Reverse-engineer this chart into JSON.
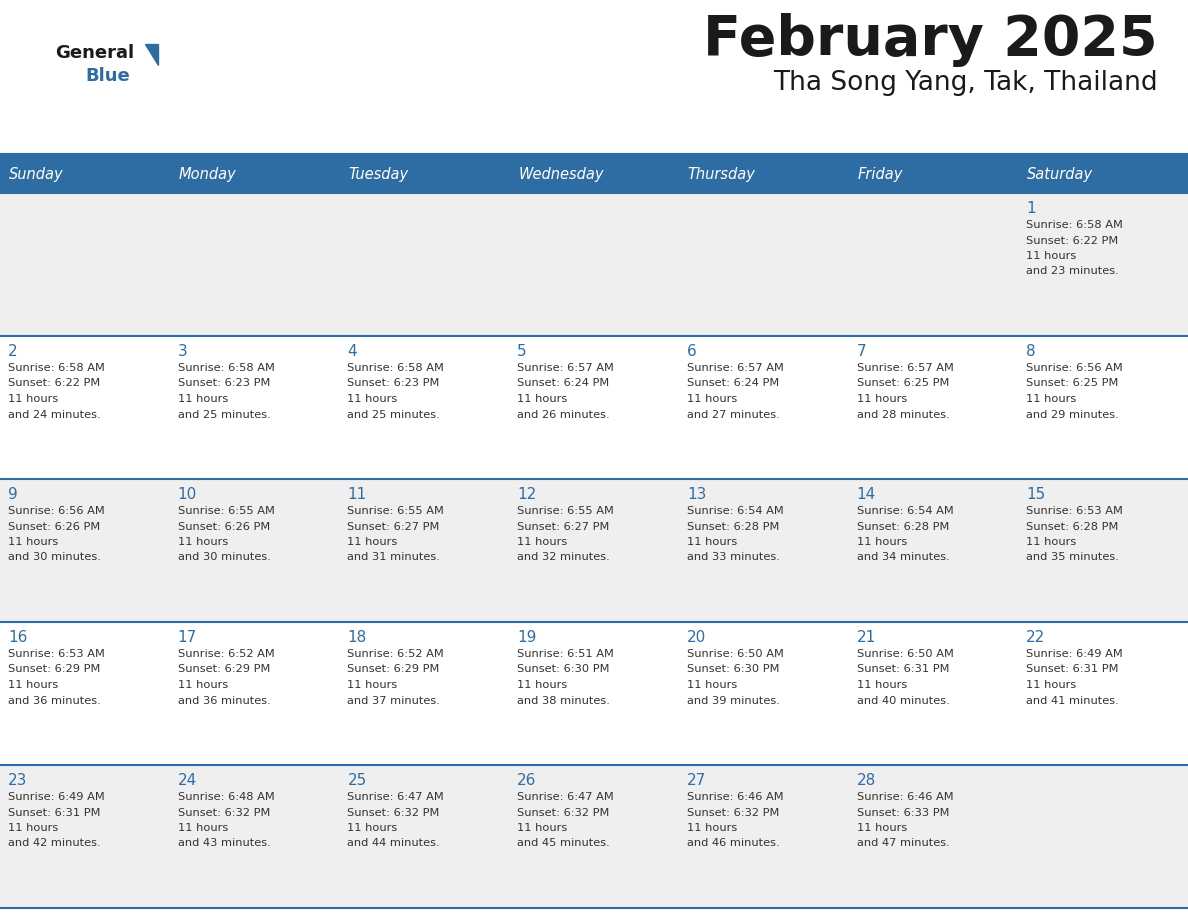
{
  "title": "February 2025",
  "subtitle": "Tha Song Yang, Tak, Thailand",
  "header_bg": "#2E6DA4",
  "header_text_color": "#FFFFFF",
  "cell_bg_odd": "#EFEFEF",
  "cell_bg_even": "#FFFFFF",
  "day_headers": [
    "Sunday",
    "Monday",
    "Tuesday",
    "Wednesday",
    "Thursday",
    "Friday",
    "Saturday"
  ],
  "title_color": "#1a1a1a",
  "subtitle_color": "#1a1a1a",
  "date_color": "#2E6DA4",
  "info_color": "#333333",
  "line_color": "#2E6DA4",
  "logo_general_color": "#1a1a1a",
  "logo_blue_color": "#2E6DA4",
  "logo_triangle_color": "#2E6DA4",
  "weeks": [
    [
      {
        "day": null
      },
      {
        "day": null
      },
      {
        "day": null
      },
      {
        "day": null
      },
      {
        "day": null
      },
      {
        "day": null
      },
      {
        "day": 1,
        "sunrise": "6:58 AM",
        "sunset": "6:22 PM",
        "daylight": "11 hours and 23 minutes."
      }
    ],
    [
      {
        "day": 2,
        "sunrise": "6:58 AM",
        "sunset": "6:22 PM",
        "daylight": "11 hours and 24 minutes."
      },
      {
        "day": 3,
        "sunrise": "6:58 AM",
        "sunset": "6:23 PM",
        "daylight": "11 hours and 25 minutes."
      },
      {
        "day": 4,
        "sunrise": "6:58 AM",
        "sunset": "6:23 PM",
        "daylight": "11 hours and 25 minutes."
      },
      {
        "day": 5,
        "sunrise": "6:57 AM",
        "sunset": "6:24 PM",
        "daylight": "11 hours and 26 minutes."
      },
      {
        "day": 6,
        "sunrise": "6:57 AM",
        "sunset": "6:24 PM",
        "daylight": "11 hours and 27 minutes."
      },
      {
        "day": 7,
        "sunrise": "6:57 AM",
        "sunset": "6:25 PM",
        "daylight": "11 hours and 28 minutes."
      },
      {
        "day": 8,
        "sunrise": "6:56 AM",
        "sunset": "6:25 PM",
        "daylight": "11 hours and 29 minutes."
      }
    ],
    [
      {
        "day": 9,
        "sunrise": "6:56 AM",
        "sunset": "6:26 PM",
        "daylight": "11 hours and 30 minutes."
      },
      {
        "day": 10,
        "sunrise": "6:55 AM",
        "sunset": "6:26 PM",
        "daylight": "11 hours and 30 minutes."
      },
      {
        "day": 11,
        "sunrise": "6:55 AM",
        "sunset": "6:27 PM",
        "daylight": "11 hours and 31 minutes."
      },
      {
        "day": 12,
        "sunrise": "6:55 AM",
        "sunset": "6:27 PM",
        "daylight": "11 hours and 32 minutes."
      },
      {
        "day": 13,
        "sunrise": "6:54 AM",
        "sunset": "6:28 PM",
        "daylight": "11 hours and 33 minutes."
      },
      {
        "day": 14,
        "sunrise": "6:54 AM",
        "sunset": "6:28 PM",
        "daylight": "11 hours and 34 minutes."
      },
      {
        "day": 15,
        "sunrise": "6:53 AM",
        "sunset": "6:28 PM",
        "daylight": "11 hours and 35 minutes."
      }
    ],
    [
      {
        "day": 16,
        "sunrise": "6:53 AM",
        "sunset": "6:29 PM",
        "daylight": "11 hours and 36 minutes."
      },
      {
        "day": 17,
        "sunrise": "6:52 AM",
        "sunset": "6:29 PM",
        "daylight": "11 hours and 36 minutes."
      },
      {
        "day": 18,
        "sunrise": "6:52 AM",
        "sunset": "6:29 PM",
        "daylight": "11 hours and 37 minutes."
      },
      {
        "day": 19,
        "sunrise": "6:51 AM",
        "sunset": "6:30 PM",
        "daylight": "11 hours and 38 minutes."
      },
      {
        "day": 20,
        "sunrise": "6:50 AM",
        "sunset": "6:30 PM",
        "daylight": "11 hours and 39 minutes."
      },
      {
        "day": 21,
        "sunrise": "6:50 AM",
        "sunset": "6:31 PM",
        "daylight": "11 hours and 40 minutes."
      },
      {
        "day": 22,
        "sunrise": "6:49 AM",
        "sunset": "6:31 PM",
        "daylight": "11 hours and 41 minutes."
      }
    ],
    [
      {
        "day": 23,
        "sunrise": "6:49 AM",
        "sunset": "6:31 PM",
        "daylight": "11 hours and 42 minutes."
      },
      {
        "day": 24,
        "sunrise": "6:48 AM",
        "sunset": "6:32 PM",
        "daylight": "11 hours and 43 minutes."
      },
      {
        "day": 25,
        "sunrise": "6:47 AM",
        "sunset": "6:32 PM",
        "daylight": "11 hours and 44 minutes."
      },
      {
        "day": 26,
        "sunrise": "6:47 AM",
        "sunset": "6:32 PM",
        "daylight": "11 hours and 45 minutes."
      },
      {
        "day": 27,
        "sunrise": "6:46 AM",
        "sunset": "6:32 PM",
        "daylight": "11 hours and 46 minutes."
      },
      {
        "day": 28,
        "sunrise": "6:46 AM",
        "sunset": "6:33 PM",
        "daylight": "11 hours and 47 minutes."
      },
      {
        "day": null
      }
    ]
  ]
}
